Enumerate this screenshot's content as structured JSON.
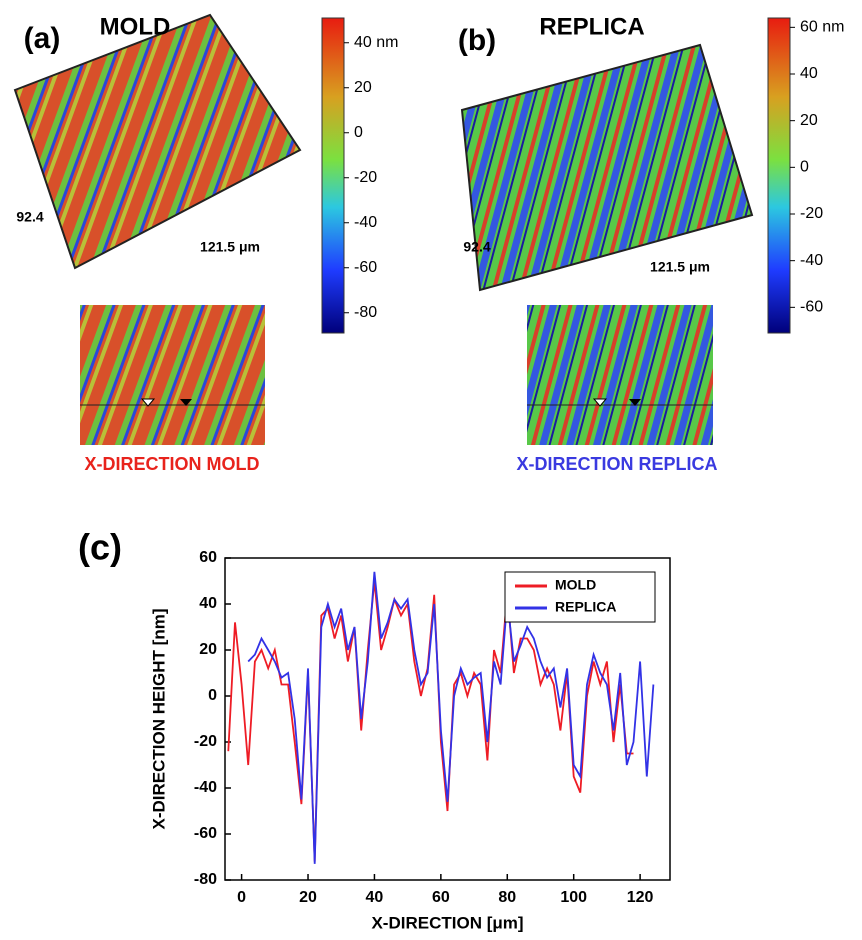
{
  "chart_data": [
    {
      "type": "surface",
      "panel": "(a)",
      "title": "MOLD",
      "y_label": "92.4",
      "x_label": "121.5 μm",
      "caption": "X-DIRECTION MOLD",
      "caption_color": "#e8231c",
      "zlim": [
        -89,
        51
      ],
      "zticks": [
        {
          "value": 40,
          "label": "40 nm"
        },
        20,
        0,
        -20,
        -40,
        -60,
        -80
      ]
    },
    {
      "type": "surface",
      "panel": "(b)",
      "title": "REPLICA",
      "y_label": "92.4",
      "x_label": "121.5 μm",
      "caption": "X-DIRECTION REPLICA",
      "caption_color": "#3a3ae0",
      "zlim": [
        -71,
        64
      ],
      "zticks": [
        {
          "value": 60,
          "label": "60 nm"
        },
        40,
        20,
        0,
        -20,
        -40,
        -60
      ]
    },
    {
      "type": "line",
      "panel": "(c)",
      "x_label": "X-DIRECTION [μm]",
      "y_label": "X-DIRECTION HEIGHT [nm]",
      "xlim": [
        -5,
        129
      ],
      "ylim": [
        -80,
        60
      ],
      "xticks": [
        0,
        20,
        40,
        60,
        80,
        100,
        120
      ],
      "yticks": [
        -80,
        -60,
        -40,
        -20,
        0,
        20,
        40,
        60
      ],
      "legend": "upper right",
      "x": [
        -4,
        -2,
        0,
        2,
        4,
        6,
        8,
        10,
        12,
        14,
        16,
        18,
        20,
        22,
        24,
        26,
        28,
        30,
        32,
        34,
        36,
        38,
        40,
        42,
        44,
        46,
        48,
        50,
        52,
        54,
        56,
        58,
        60,
        62,
        64,
        66,
        68,
        70,
        72,
        74,
        76,
        78,
        80,
        82,
        84,
        86,
        88,
        90,
        92,
        94,
        96,
        98,
        100,
        102,
        104,
        106,
        108,
        110,
        112,
        114,
        116,
        118,
        120,
        122,
        124
      ],
      "series": [
        {
          "name": "MOLD",
          "color": "#ee1c25",
          "values": [
            -24,
            32,
            5,
            -30,
            15,
            20,
            12,
            20,
            5,
            5,
            -20,
            -47,
            10,
            -72,
            35,
            38,
            25,
            35,
            15,
            30,
            -15,
            20,
            50,
            20,
            30,
            42,
            35,
            40,
            15,
            0,
            12,
            44,
            -20,
            -50,
            5,
            10,
            0,
            10,
            5,
            -28,
            20,
            10,
            45,
            10,
            25,
            25,
            20,
            5,
            12,
            5,
            -15,
            10,
            -35,
            -42,
            0,
            15,
            5,
            15,
            -20,
            5,
            -25,
            -25,
            null,
            null,
            null
          ]
        },
        {
          "name": "REPLICA",
          "color": "#3232e6",
          "values": [
            null,
            null,
            null,
            15,
            18,
            25,
            20,
            15,
            8,
            10,
            -10,
            -45,
            12,
            -73,
            30,
            40,
            30,
            38,
            20,
            30,
            -10,
            15,
            54,
            25,
            32,
            42,
            38,
            42,
            20,
            5,
            10,
            40,
            -15,
            -46,
            0,
            12,
            5,
            8,
            10,
            -20,
            15,
            5,
            42,
            15,
            22,
            30,
            25,
            15,
            8,
            12,
            -5,
            12,
            -30,
            -35,
            5,
            18,
            10,
            5,
            -15,
            10,
            -30,
            -20,
            15,
            -35,
            5
          ]
        }
      ]
    }
  ]
}
